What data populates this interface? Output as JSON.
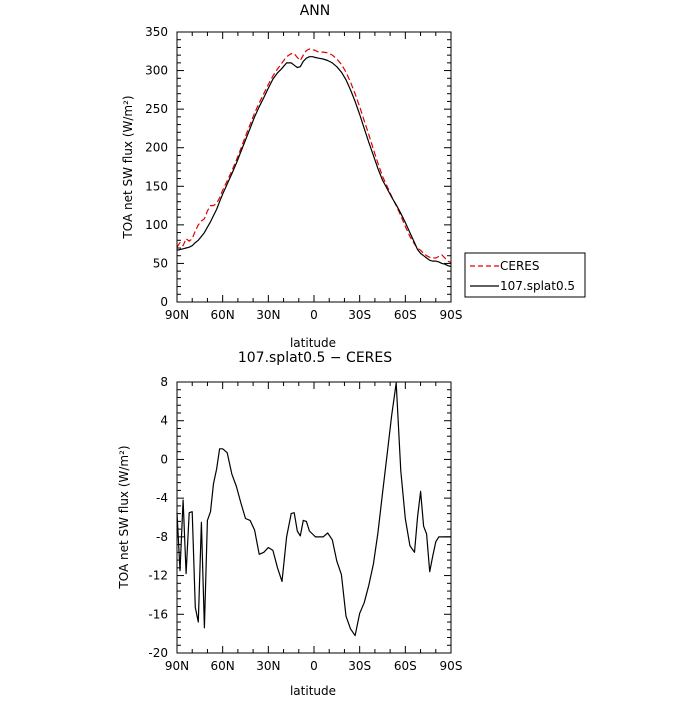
{
  "chart_data": [
    {
      "type": "line",
      "title": "ANN",
      "xlabel": "latitude",
      "ylabel": "TOA net SW flux (W/m²)",
      "x_ticks": [
        "90N",
        "60N",
        "30N",
        "0",
        "30S",
        "60S",
        "90S"
      ],
      "y_ticks": [
        "0",
        "50",
        "100",
        "150",
        "200",
        "250",
        "300",
        "350"
      ],
      "xlim": [
        -90,
        90
      ],
      "ylim": [
        0,
        350
      ],
      "legend_position": "right",
      "series": [
        {
          "name": "CERES",
          "color": "#e00000",
          "dash": "dashed",
          "x": [
            -90,
            -88,
            -86,
            -84,
            -82,
            -80,
            -78,
            -76,
            -74,
            -72,
            -70,
            -68,
            -66,
            -64,
            -62,
            -60,
            -57,
            -54,
            -51,
            -48,
            -45,
            -42,
            -39,
            -36,
            -33,
            -30,
            -27,
            -24,
            -21,
            -18,
            -15,
            -13,
            -11,
            -9,
            -7,
            -5,
            -3,
            -1,
            1,
            3,
            6,
            9,
            12,
            15,
            18,
            21,
            24,
            27,
            30,
            33,
            36,
            39,
            42,
            45,
            48,
            51,
            54,
            57,
            60,
            63,
            66,
            68,
            70,
            72,
            74,
            76,
            78,
            80,
            82,
            84,
            86,
            88,
            90
          ],
          "y": [
            71,
            77,
            73,
            82,
            79,
            82,
            92,
            100,
            105,
            108,
            118,
            125,
            125,
            128,
            135,
            145,
            157,
            170,
            184,
            199,
            215,
            230,
            245,
            258,
            270,
            282,
            293,
            302,
            310,
            318,
            322,
            322,
            317,
            313,
            320,
            326,
            328,
            327,
            326,
            324,
            324,
            323,
            320,
            315,
            308,
            298,
            285,
            270,
            253,
            235,
            217,
            198,
            180,
            163,
            150,
            137,
            125,
            112,
            98,
            85,
            75,
            70,
            67,
            63,
            60,
            58,
            57,
            57,
            59,
            61,
            57,
            53,
            51
          ]
        },
        {
          "name": "107.splat0.5",
          "color": "#000000",
          "dash": "solid",
          "x": [
            -90,
            -88,
            -86,
            -84,
            -82,
            -80,
            -78,
            -76,
            -74,
            -72,
            -70,
            -68,
            -66,
            -64,
            -62,
            -60,
            -57,
            -54,
            -51,
            -48,
            -45,
            -42,
            -39,
            -36,
            -33,
            -30,
            -27,
            -24,
            -21,
            -18,
            -15,
            -13,
            -11,
            -9,
            -7,
            -5,
            -3,
            -1,
            1,
            3,
            6,
            9,
            12,
            15,
            18,
            21,
            24,
            27,
            30,
            33,
            36,
            39,
            42,
            45,
            48,
            51,
            54,
            57,
            60,
            63,
            66,
            68,
            70,
            72,
            74,
            76,
            78,
            80,
            82,
            84,
            86,
            88,
            90
          ],
          "y": [
            67,
            68,
            69,
            70,
            71,
            73,
            77,
            80,
            85,
            90,
            97,
            104,
            112,
            120,
            130,
            140,
            153,
            166,
            180,
            195,
            210,
            225,
            240,
            253,
            265,
            277,
            289,
            297,
            303,
            310,
            310,
            307,
            304,
            305,
            312,
            316,
            318,
            318,
            317,
            316,
            315,
            313,
            310,
            305,
            298,
            288,
            275,
            260,
            243,
            225,
            207,
            190,
            173,
            158,
            147,
            136,
            126,
            115,
            103,
            90,
            77,
            68,
            63,
            60,
            57,
            54,
            53,
            53,
            52,
            50,
            49,
            47,
            46
          ]
        }
      ]
    },
    {
      "type": "line",
      "title": "107.splat0.5 − CERES",
      "xlabel": "latitude",
      "ylabel": "TOA net SW flux (W/m²)",
      "x_ticks": [
        "90N",
        "60N",
        "30N",
        "0",
        "30S",
        "60S",
        "90S"
      ],
      "y_ticks": [
        "-20",
        "-16",
        "-12",
        "-8",
        "-4",
        "0",
        "4",
        "8"
      ],
      "xlim": [
        -90,
        90
      ],
      "ylim": [
        -20,
        8
      ],
      "series": [
        {
          "color": "#000000",
          "dash": "solid",
          "x": [
            -90,
            -88,
            -86,
            -84,
            -82,
            -80,
            -78,
            -76,
            -74,
            -72,
            -70,
            -68,
            -66,
            -64,
            -62,
            -60,
            -57,
            -54,
            -51,
            -48,
            -45,
            -42,
            -39,
            -36,
            -33,
            -30,
            -27,
            -24,
            -21,
            -18,
            -15,
            -13,
            -11,
            -9,
            -7,
            -5,
            -3,
            -1,
            1,
            3,
            6,
            9,
            12,
            15,
            18,
            21,
            24,
            27,
            30,
            33,
            36,
            39,
            42,
            45,
            48,
            51,
            54,
            57,
            60,
            63,
            66,
            68,
            70,
            72,
            74,
            76,
            78,
            80,
            82,
            84,
            86,
            88,
            90
          ],
          "y": [
            -5.5,
            -11.5,
            -4.2,
            -11.8,
            -5.5,
            -5.4,
            -15.3,
            -16.8,
            -6.5,
            -17.4,
            -6.3,
            -5.4,
            -2.5,
            -1,
            1.1,
            1.1,
            0.7,
            -1.5,
            -2.8,
            -4.5,
            -6.1,
            -6.3,
            -7.3,
            -9.8,
            -9.6,
            -9.1,
            -9.4,
            -11.2,
            -12.6,
            -8,
            -5.6,
            -5.5,
            -7.4,
            -7.9,
            -6.3,
            -6.4,
            -7.4,
            -7.7,
            -8,
            -8,
            -8,
            -7.6,
            -8.3,
            -10.5,
            -11.9,
            -16.2,
            -17.5,
            -18.2,
            -15.9,
            -14.8,
            -13,
            -10.8,
            -7.6,
            -3.5,
            0.5,
            4.5,
            7.9,
            -1.2,
            -6.1,
            -8.9,
            -9.6,
            -6,
            -3.3,
            -6.9,
            -7.7,
            -11.6,
            -10,
            -8.5,
            -8,
            -8,
            -8,
            -8,
            -8
          ]
        }
      ]
    }
  ]
}
